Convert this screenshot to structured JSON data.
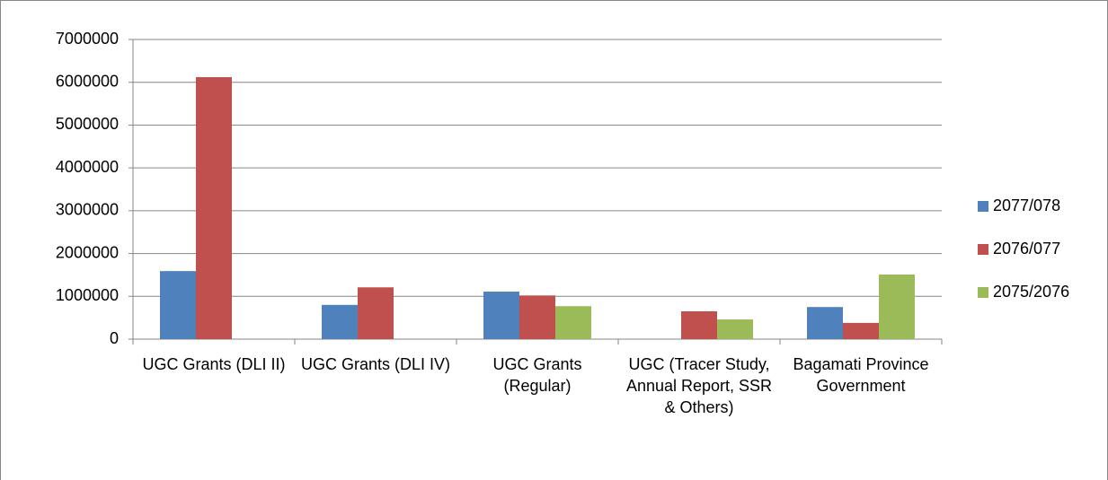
{
  "chart_data": {
    "type": "bar",
    "categories": [
      "UGC Grants (DLI II)",
      "UGC Grants (DLI IV)",
      "UGC Grants (Regular)",
      "UGC (Tracer Study, Annual Report, SSR & Others)",
      "Bagamati Province Government"
    ],
    "series": [
      {
        "name": "2077/078",
        "color": "#4f81bd",
        "values": [
          1590000,
          800000,
          1110000,
          null,
          750000
        ]
      },
      {
        "name": "2076/077",
        "color": "#c0504d",
        "values": [
          6120000,
          1210000,
          1020000,
          650000,
          380000
        ]
      },
      {
        "name": "2075/2076",
        "color": "#9bbb59",
        "values": [
          null,
          null,
          770000,
          460000,
          1510000
        ]
      }
    ],
    "ylim": [
      0,
      7000000
    ],
    "yticks": [
      0,
      1000000,
      2000000,
      3000000,
      4000000,
      5000000,
      6000000,
      7000000
    ],
    "grid": true,
    "legend": "right"
  }
}
